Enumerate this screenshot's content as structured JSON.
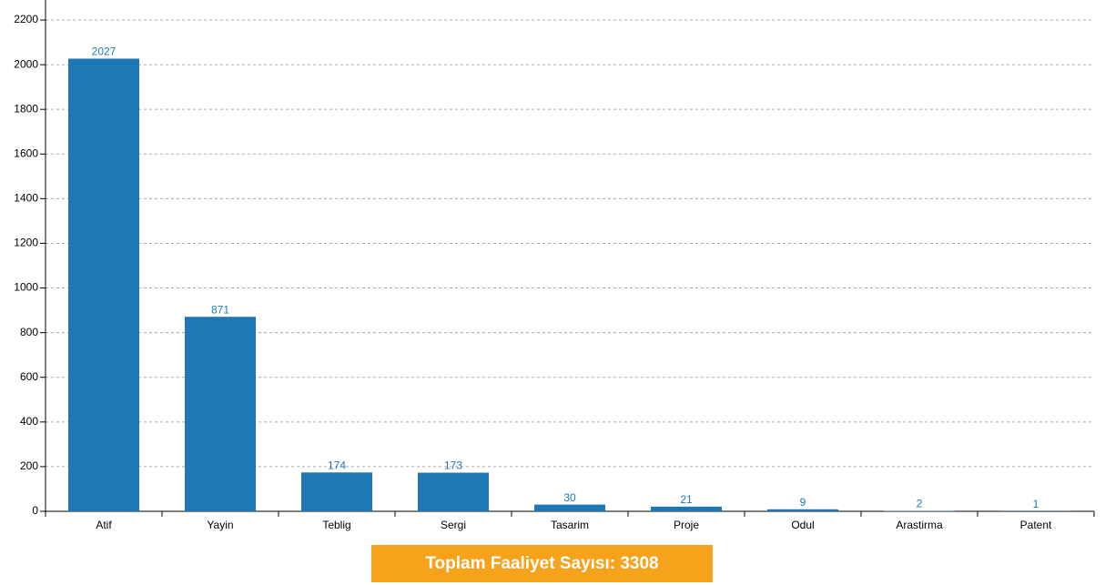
{
  "chart_data": {
    "type": "bar",
    "categories": [
      "Atif",
      "Yayin",
      "Teblig",
      "Sergi",
      "Tasarim",
      "Proje",
      "Odul",
      "Arastirma",
      "Patent"
    ],
    "values": [
      2027,
      871,
      174,
      173,
      30,
      21,
      9,
      2,
      1
    ],
    "color": "#1f77b4",
    "ylim": [
      0,
      2200
    ],
    "yticks": [
      0,
      200,
      400,
      600,
      800,
      1000,
      1200,
      1400,
      1600,
      1800,
      2000,
      2200
    ],
    "grid": true,
    "footer": "Toplam Faaliyet Sayısı: 3308"
  }
}
